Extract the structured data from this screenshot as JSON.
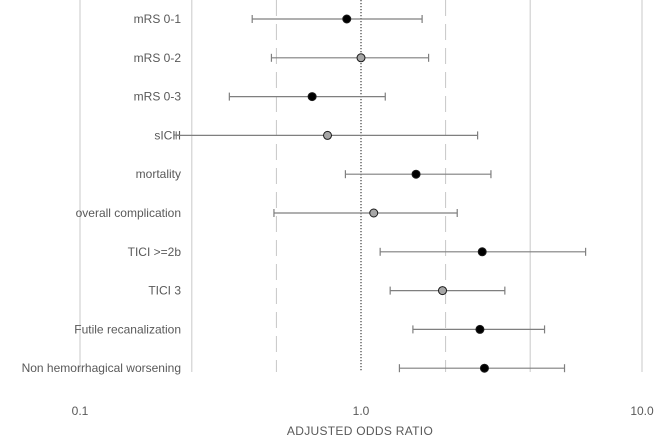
{
  "chart_data": {
    "type": "forest",
    "xlabel": "ADJUSTED ODDS RATIO",
    "x_scale": "log",
    "xlim": [
      0.1,
      10.0
    ],
    "x_ticks": [
      0.1,
      1.0,
      10.0
    ],
    "x_tick_labels": [
      "0.1",
      "1.0",
      "10.0"
    ],
    "gridlines": [
      {
        "x": 0.1,
        "style": "solid"
      },
      {
        "x": 0.25,
        "style": "solid"
      },
      {
        "x": 0.5,
        "style": "dashed"
      },
      {
        "x": 1.0,
        "style": "dotted"
      },
      {
        "x": 2.0,
        "style": "dashed"
      },
      {
        "x": 4.0,
        "style": "solid"
      },
      {
        "x": 10.0,
        "style": "solid"
      }
    ],
    "rows": [
      {
        "label": "mRS 0-1",
        "or": 0.89,
        "lo": 0.41,
        "hi": 1.65,
        "marker": "black"
      },
      {
        "label": "mRS 0-2",
        "or": 1.0,
        "lo": 0.48,
        "hi": 1.74,
        "marker": "gray"
      },
      {
        "label": "mRS 0-3",
        "or": 0.67,
        "lo": 0.34,
        "hi": 1.22,
        "marker": "black"
      },
      {
        "label": "sICH",
        "or": 0.76,
        "lo": 0.22,
        "hi": 2.6,
        "marker": "gray"
      },
      {
        "label": "mortality",
        "or": 1.57,
        "lo": 0.88,
        "hi": 2.9,
        "marker": "black"
      },
      {
        "label": "overall complication",
        "or": 1.11,
        "lo": 0.49,
        "hi": 2.2,
        "marker": "gray"
      },
      {
        "label": "TICI >=2b",
        "or": 2.7,
        "lo": 1.17,
        "hi": 6.3,
        "marker": "black"
      },
      {
        "label": "TICI 3",
        "or": 1.95,
        "lo": 1.27,
        "hi": 3.25,
        "marker": "gray"
      },
      {
        "label": "Futile recanalization",
        "or": 2.65,
        "lo": 1.53,
        "hi": 4.5,
        "marker": "black"
      },
      {
        "label": "Non hemorrhagical worsening",
        "or": 2.75,
        "lo": 1.37,
        "hi": 5.3,
        "marker": "black"
      }
    ],
    "colors": {
      "marker_black": "#000000",
      "marker_gray": "#a6a6a6",
      "line": "#7f7f7f",
      "grid": "#c8c8c8",
      "text": "#595959"
    }
  }
}
